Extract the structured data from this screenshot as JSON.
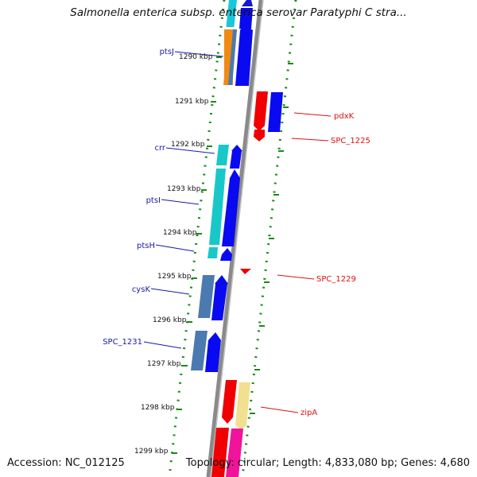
{
  "title": "Salmonella enterica subsp. enterica serovar Paratyphi C stra...",
  "accession": "Accession: NC_012125",
  "topology": "Topology: circular; Length: 4,833,080 bp; Genes: 4,680",
  "colors": {
    "backbone": "#8a8a8a",
    "tick_dots": "#1a8a1a",
    "label_left": "#1a1aa8",
    "label_right": "#e01010",
    "blue_gene": "#0a0af0",
    "cyan_gene": "#18c8c8",
    "red_gene": "#f00000"
  },
  "ticks": [
    "1290 kbp",
    "1291 kbp",
    "1292 kbp",
    "1293 kbp",
    "1294 kbp",
    "1295 kbp",
    "1296 kbp",
    "1297 kbp",
    "1298 kbp",
    "1299 kbp"
  ],
  "genes_left": [
    "ptsJ",
    "crr",
    "ptsI",
    "ptsH",
    "cysK",
    "SPC_1231"
  ],
  "genes_right": [
    "pdxK",
    "SPC_1225",
    "SPC_1229",
    "zipA"
  ]
}
